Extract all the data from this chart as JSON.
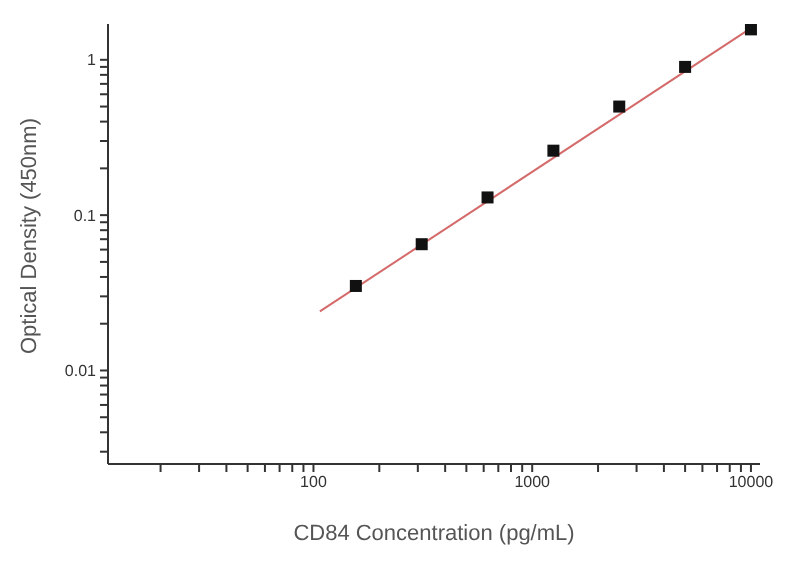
{
  "chart_data": {
    "type": "scatter",
    "xlabel": "CD84 Concentration (pg/mL)",
    "ylabel": "Optical Density (450nm)",
    "log": "xy",
    "grid": false,
    "legend": false,
    "xlim": [
      11.5,
      11000
    ],
    "xticks": [
      {
        "value": 20,
        "label": null
      },
      {
        "value": 30,
        "label": null
      },
      {
        "value": 40,
        "label": null
      },
      {
        "value": 50,
        "label": null
      },
      {
        "value": 60,
        "label": null
      },
      {
        "value": 70,
        "label": null
      },
      {
        "value": 80,
        "label": null
      },
      {
        "value": 90,
        "label": null
      },
      100,
      {
        "value": 200,
        "label": null
      },
      {
        "value": 300,
        "label": null
      },
      {
        "value": 400,
        "label": null
      },
      {
        "value": 500,
        "label": null
      },
      {
        "value": 600,
        "label": null
      },
      {
        "value": 700,
        "label": null
      },
      {
        "value": 800,
        "label": null
      },
      {
        "value": 900,
        "label": null
      },
      1000,
      {
        "value": 2000,
        "label": null
      },
      {
        "value": 3000,
        "label": null
      },
      {
        "value": 4000,
        "label": null
      },
      {
        "value": 5000,
        "label": null
      },
      {
        "value": 6000,
        "label": null
      },
      {
        "value": 7000,
        "label": null
      },
      {
        "value": 8000,
        "label": null
      },
      {
        "value": 9000,
        "label": null
      },
      10000
    ],
    "ylim": [
      0.0025,
      1.7
    ],
    "yticks": [
      {
        "value": 0.003,
        "label": null
      },
      {
        "value": 0.004,
        "label": null
      },
      {
        "value": 0.005,
        "label": null
      },
      {
        "value": 0.006,
        "label": null
      },
      {
        "value": 0.007,
        "label": null
      },
      {
        "value": 0.008,
        "label": null
      },
      {
        "value": 0.009,
        "label": null
      },
      0.01,
      {
        "value": 0.02,
        "label": null
      },
      {
        "value": 0.03,
        "label": null
      },
      {
        "value": 0.04,
        "label": null
      },
      {
        "value": 0.05,
        "label": null
      },
      {
        "value": 0.06,
        "label": null
      },
      {
        "value": 0.07,
        "label": null
      },
      {
        "value": 0.08,
        "label": null
      },
      {
        "value": 0.09,
        "label": null
      },
      0.1,
      {
        "value": 0.2,
        "label": null
      },
      {
        "value": 0.3,
        "label": null
      },
      {
        "value": 0.4,
        "label": null
      },
      {
        "value": 0.5,
        "label": null
      },
      {
        "value": 0.6,
        "label": null
      },
      {
        "value": 0.7,
        "label": null
      },
      {
        "value": 0.8,
        "label": null
      },
      {
        "value": 0.9,
        "label": null
      },
      1
    ],
    "series": [
      {
        "type": "line",
        "color": "#d46a6a",
        "marker": "none",
        "x": [
          107,
          10000
        ],
        "values": [
          0.024,
          1.6
        ]
      },
      {
        "color": "#111111",
        "marker": "square",
        "x": [
          156.25,
          312.5,
          625,
          1250,
          2500,
          5000,
          10000
        ],
        "values": [
          0.035,
          0.065,
          0.13,
          0.26,
          0.5,
          0.9,
          1.57
        ]
      }
    ]
  }
}
